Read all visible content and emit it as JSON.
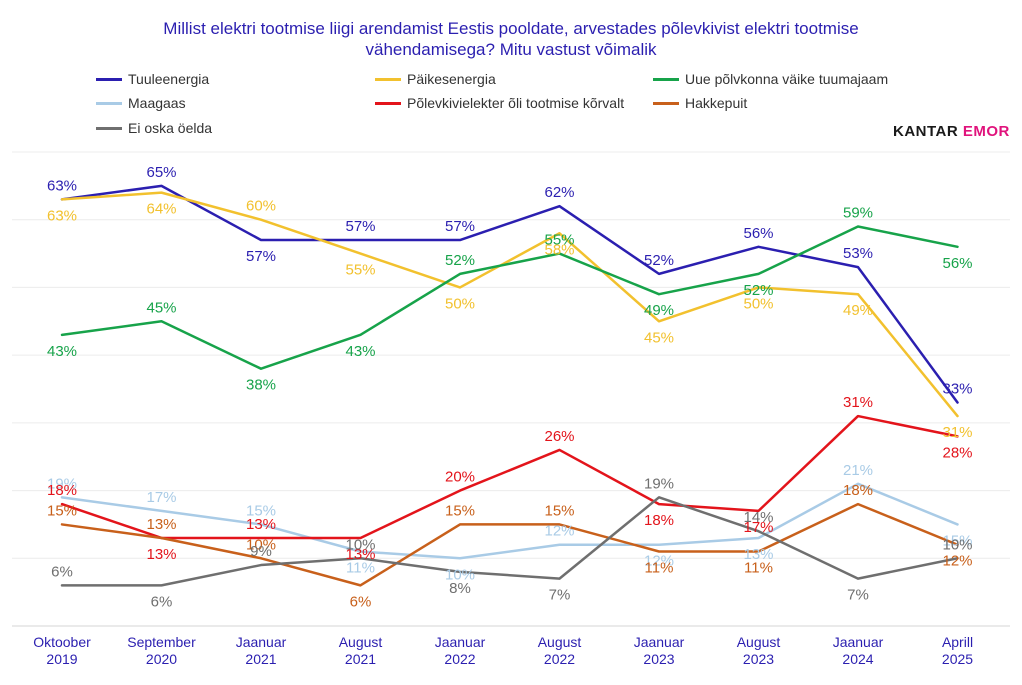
{
  "title_lines": [
    "Millist elektri tootmise liigi arendamist Eestis pooldate, arvestades põlevkivist elektri tootmise",
    "vähendamisega? Mitu vastust võimalik"
  ],
  "brand": {
    "part1": "KANTAR",
    "part2": "EMOR"
  },
  "chart_data": {
    "type": "line",
    "title": "Millist elektri tootmise liigi arendamist Eestis pooldate, arvestades põlevkivist elektri tootmise vähendamisega? Mitu vastust võimalik",
    "categories": [
      [
        "Oktoober",
        "2019"
      ],
      [
        "September",
        "2020"
      ],
      [
        "Jaanuar",
        "2021"
      ],
      [
        "August",
        "2021"
      ],
      [
        "Jaanuar",
        "2022"
      ],
      [
        "August",
        "2022"
      ],
      [
        "Jaanuar",
        "2023"
      ],
      [
        "August",
        "2023"
      ],
      [
        "Jaanuar",
        "2024"
      ],
      [
        "Aprill",
        "2025"
      ]
    ],
    "ylim": [
      0,
      70
    ],
    "grid": true,
    "legend_position": "top",
    "value_suffix": "%",
    "series": [
      {
        "name": "Tuuleenergia",
        "color": "#2b1fb0",
        "values": [
          63,
          65,
          57,
          57,
          57,
          62,
          52,
          56,
          53,
          33
        ]
      },
      {
        "name": "Päikesenergia",
        "color": "#f2c12e",
        "values": [
          63,
          64,
          60,
          55,
          50,
          58,
          45,
          50,
          49,
          31
        ]
      },
      {
        "name": "Uue põlvkonna väike tuumajaam",
        "color": "#17a34a",
        "values": [
          43,
          45,
          38,
          43,
          52,
          55,
          49,
          52,
          59,
          56
        ]
      },
      {
        "name": "Maagaas",
        "color": "#a9cbe6",
        "values": [
          19,
          17,
          15,
          11,
          10,
          12,
          12,
          13,
          21,
          15
        ]
      },
      {
        "name": "Põlevkivielekter õli tootmise kõrvalt",
        "color": "#e3141b",
        "values": [
          18,
          13,
          13,
          13,
          20,
          26,
          18,
          17,
          31,
          28
        ]
      },
      {
        "name": "Hakkepuit",
        "color": "#c8601b",
        "values": [
          15,
          13,
          10,
          6,
          15,
          15,
          11,
          11,
          18,
          12
        ]
      },
      {
        "name": "Ei oska öelda",
        "color": "#6f6f6f",
        "values": [
          6,
          6,
          9,
          10,
          8,
          7,
          19,
          14,
          7,
          10
        ]
      }
    ]
  }
}
